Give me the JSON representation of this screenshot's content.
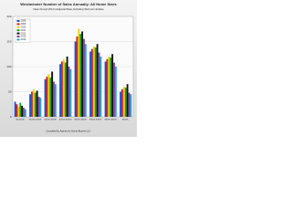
{
  "chart_data": {
    "type": "bar",
    "title": "Westminster Number of Sales Annually: All Home Sizes",
    "subtitle": "Value through 2014 Unadjusted Data, Excluding Short-term Entities",
    "footer": "Compiled by Agents for Home Buyers LLC",
    "categories": [
      "$0-$100K",
      "$100K-$150K",
      "$150K-$200K",
      "$200K-$250K",
      "$250K-$300K",
      "$300K-$400K",
      "$400K-$500K",
      "$500K+"
    ],
    "series": [
      {
        "name": "2008",
        "color": "#1f4fc8",
        "values": [
          30,
          45,
          75,
          105,
          150,
          130,
          110,
          50
        ]
      },
      {
        "name": "2009",
        "color": "#d42020",
        "values": [
          25,
          50,
          80,
          110,
          160,
          135,
          115,
          55
        ]
      },
      {
        "name": "2010",
        "color": "#e8d400",
        "values": [
          20,
          55,
          85,
          115,
          175,
          140,
          120,
          60
        ]
      },
      {
        "name": "2011",
        "color": "#1e9a30",
        "values": [
          28,
          48,
          78,
          108,
          165,
          138,
          118,
          58
        ]
      },
      {
        "name": "2012",
        "color": "#111111",
        "values": [
          22,
          52,
          90,
          120,
          170,
          145,
          125,
          65
        ]
      },
      {
        "name": "2013",
        "color": "#7d3fa8",
        "values": [
          18,
          40,
          70,
          100,
          155,
          128,
          108,
          48
        ]
      },
      {
        "name": "2014",
        "color": "#2aa7c9",
        "values": [
          15,
          38,
          65,
          95,
          145,
          120,
          100,
          45
        ]
      }
    ],
    "ylim": [
      0,
      200
    ],
    "yticks": [
      0,
      50,
      100,
      150,
      200
    ],
    "grid": true,
    "legend": "top-left"
  }
}
